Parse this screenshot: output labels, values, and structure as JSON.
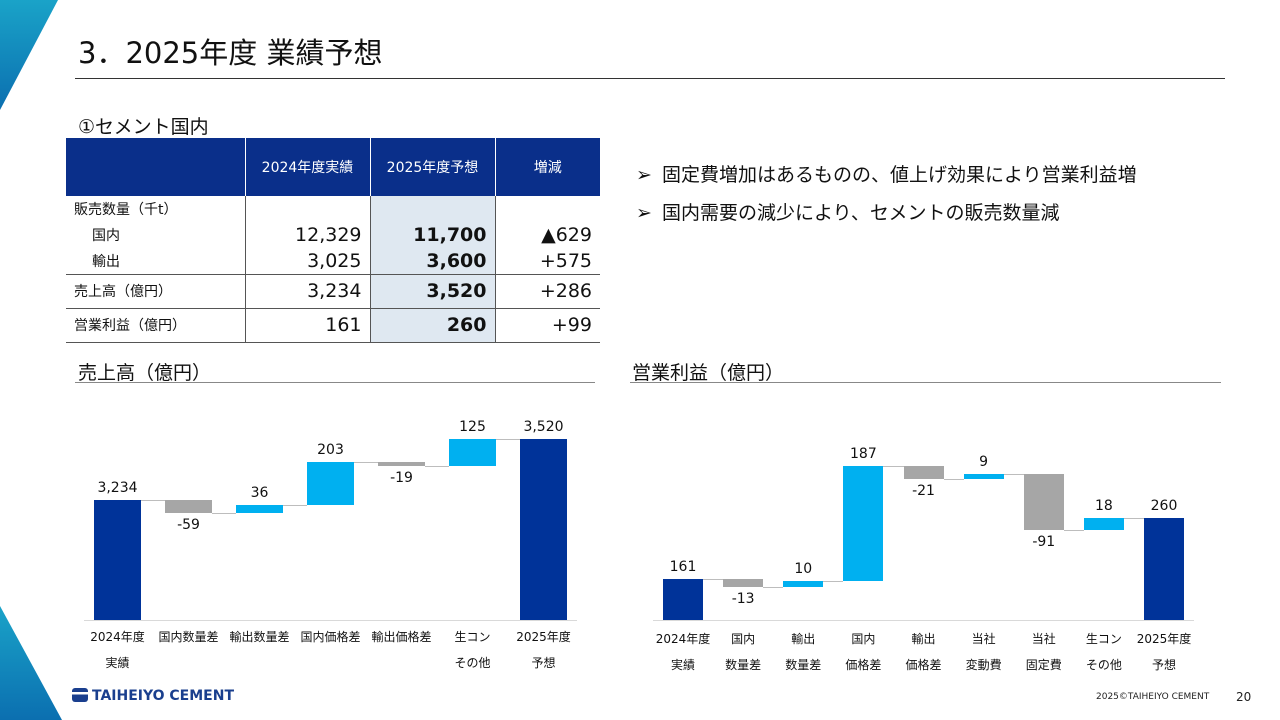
{
  "title": "3．2025年度 業績予想",
  "section_label": "①セメント国内",
  "table": {
    "headers": [
      "",
      "2024年度実績",
      "2025年度予想",
      "増減"
    ],
    "volume_label": "販売数量（千t）",
    "rows": [
      {
        "label": "国内",
        "a2024": "12,329",
        "f2025": "11,700",
        "diff": "▲629"
      },
      {
        "label": "輸出",
        "a2024": "3,025",
        "f2025": "3,600",
        "diff": "+575"
      },
      {
        "label": "売上高（億円）",
        "a2024": "3,234",
        "f2025": "3,520",
        "diff": "+286"
      },
      {
        "label": "営業利益（億円）",
        "a2024": "161",
        "f2025": "260",
        "diff": "+99"
      }
    ]
  },
  "bullets": {
    "marker": "➢",
    "items": [
      "固定費増加はあるものの、値上げ効果により営業利益増",
      "国内需要の減少により、セメントの販売数量減"
    ]
  },
  "charts": {
    "sales_title": "売上高（億円）",
    "profit_title": "営業利益（億円）"
  },
  "colors": {
    "total": "#003399",
    "increase": "#00B0F0",
    "decrease": "#A6A6A6",
    "header_bg": "#0a2f8a",
    "highlight_bg": "#dfe8f1"
  },
  "chart_data": [
    {
      "type": "waterfall",
      "title": "売上高（億円）",
      "categories": [
        [
          "2024年度",
          "実績"
        ],
        [
          "国内数量差"
        ],
        [
          "輸出数量差"
        ],
        [
          "国内価格差"
        ],
        [
          "輸出価格差"
        ],
        [
          "生コン",
          "その他"
        ],
        [
          "2025年度",
          "予想"
        ]
      ],
      "values": [
        3234,
        -59,
        36,
        203,
        -19,
        125,
        3520
      ],
      "labels": [
        "3,234",
        "-59",
        "36",
        "203",
        "-19",
        "125",
        "3,520"
      ],
      "kinds": [
        "total",
        "delta",
        "delta",
        "delta",
        "delta",
        "delta",
        "total"
      ],
      "y_range": [
        2680,
        3560
      ]
    },
    {
      "type": "waterfall",
      "title": "営業利益（億円）",
      "categories": [
        [
          "2024年度",
          "実績"
        ],
        [
          "国内",
          "数量差"
        ],
        [
          "輸出",
          "数量差"
        ],
        [
          "国内",
          "価格差"
        ],
        [
          "輸出",
          "価格差"
        ],
        [
          "当社",
          "変動費"
        ],
        [
          "当社",
          "固定費"
        ],
        [
          "生コン",
          "その他"
        ],
        [
          "2025年度",
          "予想"
        ]
      ],
      "values": [
        161,
        -13,
        10,
        187,
        -21,
        9,
        -91,
        18,
        260
      ],
      "labels": [
        "161",
        "-13",
        "10",
        "187",
        "-21",
        "9",
        "-91",
        "18",
        "260"
      ],
      "kinds": [
        "total",
        "delta",
        "delta",
        "delta",
        "delta",
        "delta",
        "delta",
        "delta",
        "total"
      ],
      "y_range": [
        95,
        355
      ]
    }
  ],
  "footer": {
    "logo_text": "TAIHEIYO CEMENT",
    "copyright": "2025©TAIHEIYO CEMENT",
    "page": "20"
  }
}
